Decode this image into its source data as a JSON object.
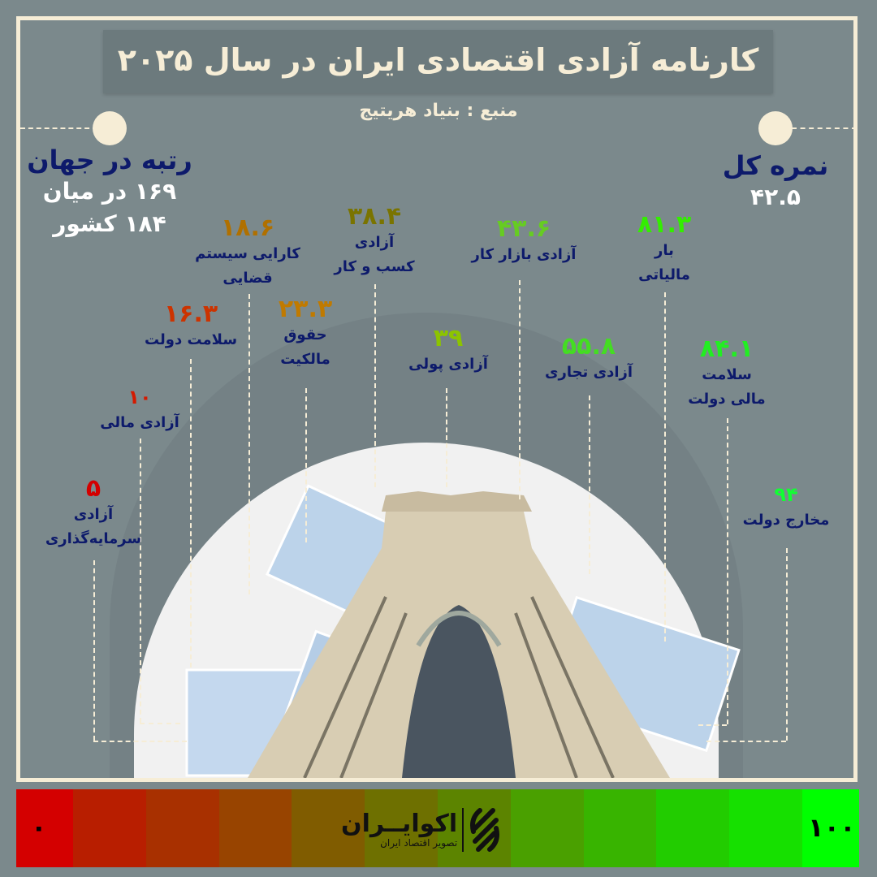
{
  "title": "کارنامه آزادی اقتصادی ایران در سال ۲۰۲۵",
  "source": "منبع : بنیاد هریتیج",
  "rank": {
    "heading": "رتبه در جهان",
    "line1": "۱۶۹ در میان",
    "line2": "۱۸۴ کشور"
  },
  "overall": {
    "heading": "نمره کل",
    "value": "۴۲.۵"
  },
  "indicators": [
    {
      "value": "۵",
      "label1": "آزادی",
      "label2": "سرمایه‌گذاری",
      "color": "#d40000"
    },
    {
      "value": "۱۰",
      "label1": "آزادی مالی",
      "label2": "",
      "color": "#d41a00"
    },
    {
      "value": "۱۶.۳",
      "label1": "سلامت دولت",
      "label2": "",
      "color": "#cc3300"
    },
    {
      "value": "۱۸.۶",
      "label1": "کارایی سیستم",
      "label2": "قضایی",
      "color": "#b07000"
    },
    {
      "value": "۲۳.۳",
      "label1": "حقوق",
      "label2": "مالکیت",
      "color": "#c07a00"
    },
    {
      "value": "۳۸.۴",
      "label1": "آزادی",
      "label2": "کسب و کار",
      "color": "#7a7400"
    },
    {
      "value": "۳۹",
      "label1": "آزادی پولی",
      "label2": "",
      "color": "#8cc400"
    },
    {
      "value": "۴۳.۶",
      "label1": "آزادی بازار کار",
      "label2": "",
      "color": "#66cc22"
    },
    {
      "value": "۵۵.۸",
      "label1": "آزادی تجاری",
      "label2": "",
      "color": "#44dd22"
    },
    {
      "value": "۸۱.۳",
      "label1": "بار",
      "label2": "مالیاتی",
      "color": "#33ee00"
    },
    {
      "value": "۸۴.۱",
      "label1": "سلامت",
      "label2": "مالی دولت",
      "color": "#22ee22"
    },
    {
      "value": "۹۴",
      "label1": "مخارج دولت",
      "label2": "",
      "color": "#11ff33"
    }
  ],
  "scale": {
    "min": "۰",
    "max": "۱۰۰",
    "colors": [
      "#d40000",
      "#b81e00",
      "#a83000",
      "#984400",
      "#805c00",
      "#6e7000",
      "#5c8400",
      "#4aa000",
      "#38b400",
      "#22cc00",
      "#16e000",
      "#00ff00"
    ]
  },
  "logo": {
    "name": "اکوایــران",
    "tagline": "تصویر اقتصاد ایران"
  }
}
